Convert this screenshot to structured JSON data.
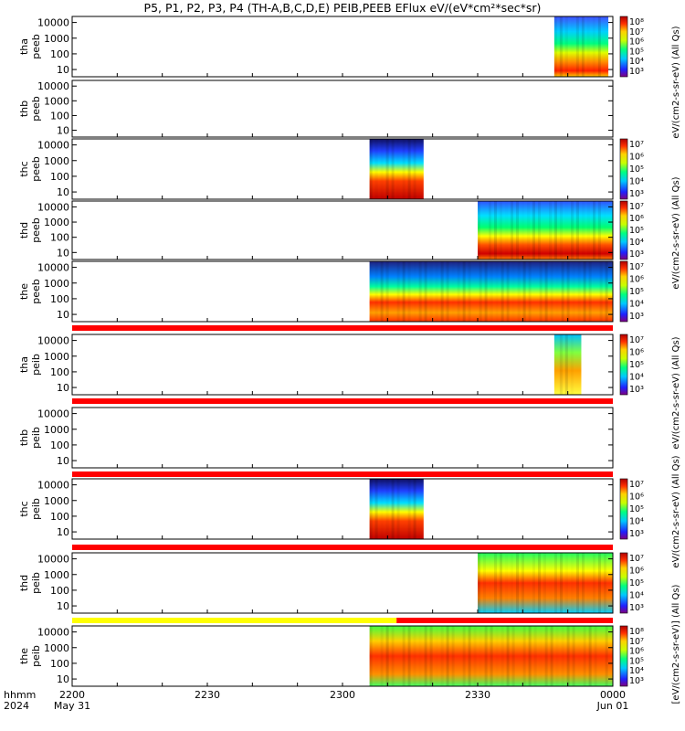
{
  "chart_data": {
    "type": "heatmap",
    "title": "P5, P1, P2, P3, P4 (TH-A,B,C,D,E) PEIB,PEEB EFlux eV/(eV*cm²*sec*sr)",
    "x_axis": {
      "label_lines": [
        "hhmm",
        "2024"
      ],
      "ticks": [
        {
          "label": "2200",
          "sub": "May 31"
        },
        {
          "label": "2230",
          "sub": ""
        },
        {
          "label": "2300",
          "sub": ""
        },
        {
          "label": "2330",
          "sub": ""
        },
        {
          "label": "0000",
          "sub": "Jun 01"
        }
      ]
    },
    "y_ticks": [
      "10000",
      "1000",
      "100",
      "10"
    ],
    "scale": "log",
    "colorbar_ticks_6": [
      "10⁸",
      "10⁷",
      "10⁶",
      "10⁵",
      "10⁴",
      "10³"
    ],
    "colorbar_ticks_5": [
      "10⁷",
      "10⁶",
      "10⁵",
      "10⁴",
      "10³"
    ],
    "colorbar_unit_labels": [
      "eV/(cm2-s-sr-eV) (All Qs)",
      "eV/(cm2-s-sr-eV) (All Qs)",
      "eV/(cm2-s-sr-eV) (All Qs)",
      "eV/(cm2-s-sr-eV) (All Qs)",
      "[eV/(cm2-s-sr-eV)] (All Qs)"
    ],
    "panels": [
      {
        "probe": "tha",
        "species": "peeb",
        "data_start": "23:47",
        "data_end": "23:59",
        "colorbar": "6"
      },
      {
        "probe": "thb",
        "species": "peeb",
        "data_start": null,
        "data_end": null,
        "colorbar": null
      },
      {
        "probe": "thc",
        "species": "peeb",
        "data_start": "23:06",
        "data_end": "23:18",
        "colorbar": "5"
      },
      {
        "probe": "thd",
        "species": "peeb",
        "data_start": "23:30",
        "data_end": "00:00",
        "colorbar": "5"
      },
      {
        "probe": "the",
        "species": "peeb",
        "data_start": "23:06",
        "data_end": "00:00",
        "colorbar": "5"
      },
      {
        "probe": "tha",
        "species": "peib",
        "data_start": "23:47",
        "data_end": "23:53",
        "colorbar": "5"
      },
      {
        "probe": "thb",
        "species": "peib",
        "data_start": null,
        "data_end": null,
        "colorbar": null
      },
      {
        "probe": "thc",
        "species": "peib",
        "data_start": "23:06",
        "data_end": "23:18",
        "colorbar": "5"
      },
      {
        "probe": "thd",
        "species": "peib",
        "data_start": "23:30",
        "data_end": "00:00",
        "colorbar": "5"
      },
      {
        "probe": "the",
        "species": "peib",
        "data_start": "23:06",
        "data_end": "00:00",
        "colorbar": "6"
      }
    ],
    "status_bar_colors": {
      "red": "#ff0000",
      "yellow": "#ffff00"
    }
  }
}
